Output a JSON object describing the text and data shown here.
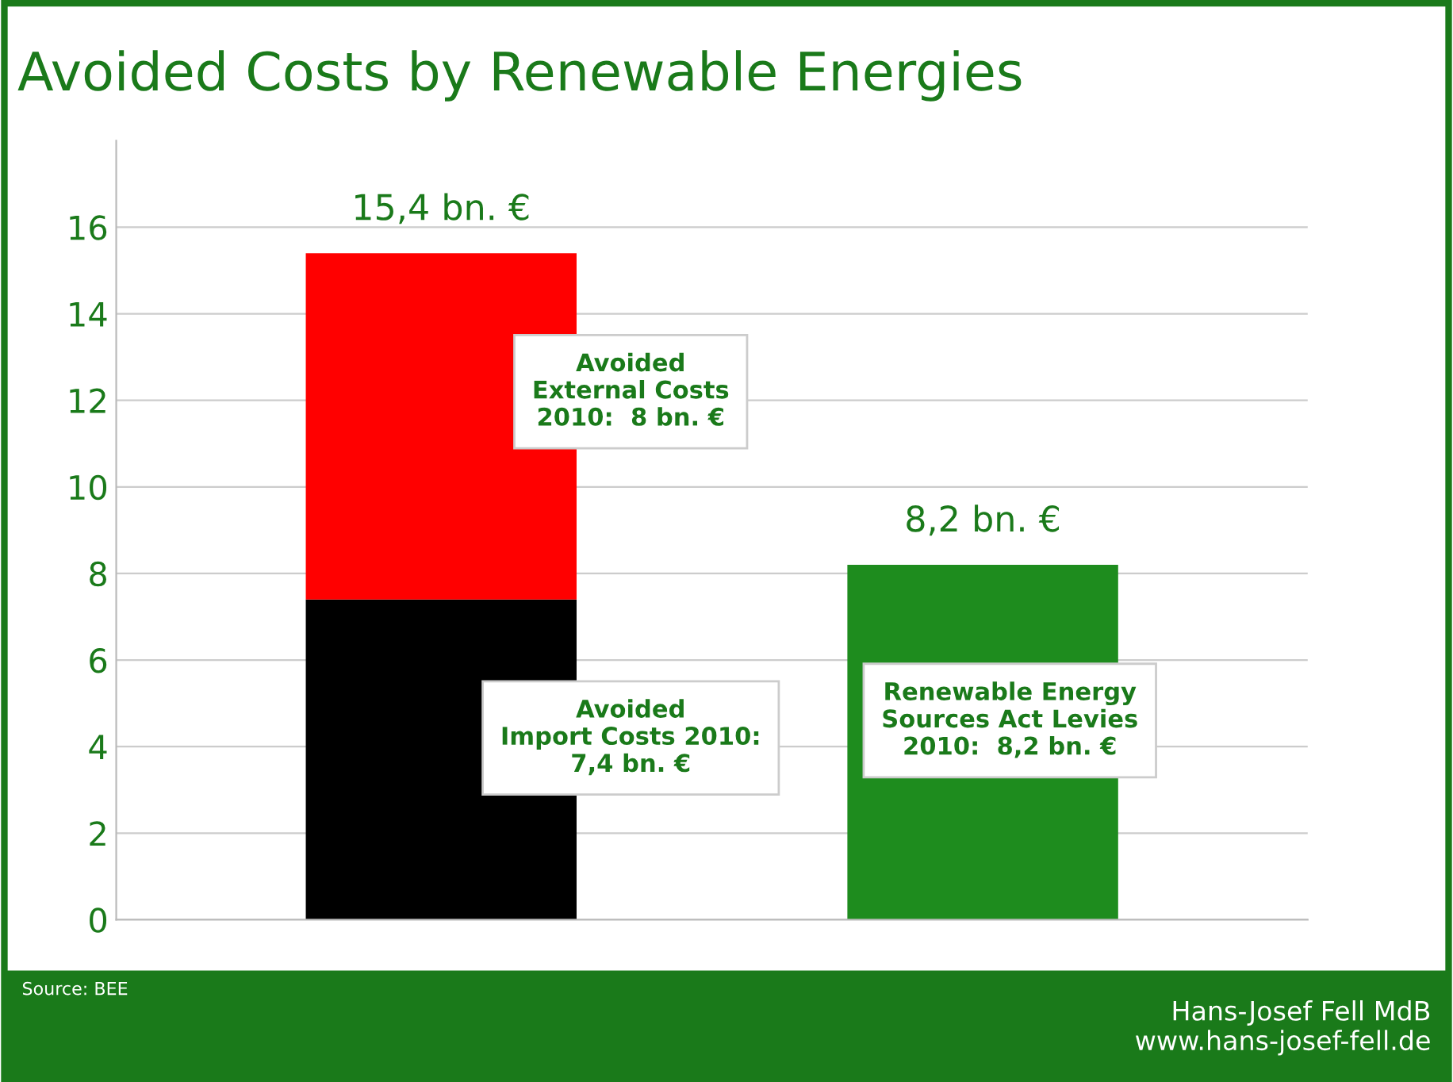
{
  "chart_data": {
    "type": "bar",
    "title": "Avoided Costs by Renewable Energies",
    "categories": [
      null,
      null
    ],
    "stacked": true,
    "series": [
      {
        "values": [
          7.4,
          8.2
        ],
        "colors": [
          "#000000",
          "#1e8c1e"
        ]
      },
      {
        "values": [
          8,
          null
        ],
        "colors": [
          "#ff0000",
          "#ff0000"
        ]
      }
    ],
    "totals": [
      "15,4 bn. €",
      "8,2 bn. €"
    ],
    "ylim": [
      0,
      18
    ],
    "yticks": [
      0,
      2,
      4,
      6,
      8,
      10,
      12,
      14,
      16
    ],
    "grid": "y",
    "tick_labels": "y",
    "annotations": [
      "Avoided\nExternal Costs\n2010:  8 bn. €",
      "Avoided\nImport Costs 2010:\n7,4 bn. €",
      "Renewable Energy\nSources Act Levies\n2010:  8,2 bn. €",
      "Source: BEE",
      "Hans-Josef Fell MdB\nwww.hans-josef-fell.de"
    ]
  }
}
